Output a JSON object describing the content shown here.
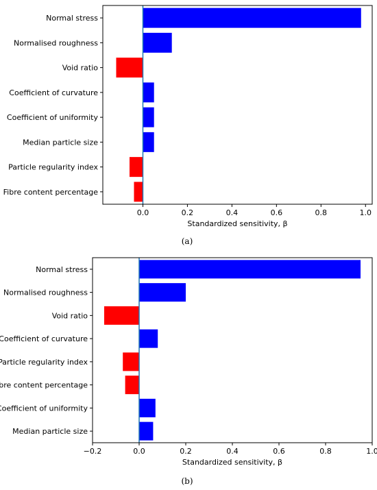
{
  "figure": {
    "caption_a": "(a)",
    "caption_b": "(b)"
  },
  "chart_data": [
    {
      "type": "bar",
      "orientation": "horizontal",
      "title": "",
      "xlabel": "Standardized sensitivity, β",
      "ylabel": "",
      "xlim": [
        -0.18,
        1.03
      ],
      "xticks": [
        0.0,
        0.2,
        0.4,
        0.6,
        0.8,
        1.0
      ],
      "xtick_labels": [
        "0.0",
        "0.2",
        "0.4",
        "0.6",
        "0.8",
        "1.0"
      ],
      "categories": [
        "Normal stress",
        "Normalised roughness",
        "Void ratio",
        "Coefficient of curvature",
        "Coefficient of uniformity",
        "Median particle size",
        "Particle regularity index",
        "Fibre content percentage"
      ],
      "values": [
        0.98,
        0.13,
        -0.12,
        0.05,
        0.05,
        0.05,
        -0.06,
        -0.04
      ],
      "colors": {
        "positive": "#0000ff",
        "negative": "#ff0000",
        "zero_line": "#1f77b4"
      },
      "grid": false,
      "legend": "none"
    },
    {
      "type": "bar",
      "orientation": "horizontal",
      "title": "",
      "xlabel": "Standardized sensitivity, β",
      "ylabel": "",
      "xlim": [
        -0.2,
        1.0
      ],
      "xticks": [
        -0.2,
        0.0,
        0.2,
        0.4,
        0.6,
        0.8,
        1.0
      ],
      "xtick_labels": [
        "−0.2",
        "0.0",
        "0.2",
        "0.4",
        "0.6",
        "0.8",
        "1.0"
      ],
      "categories": [
        "Normal stress",
        "Normalised roughness",
        "Void ratio",
        "Coefficient of curvature",
        "Particle regularity index",
        "Fibre content percentage",
        "Coefficient of uniformity",
        "Median particle size"
      ],
      "values": [
        0.95,
        0.2,
        -0.15,
        0.08,
        -0.07,
        -0.06,
        0.07,
        0.06
      ],
      "colors": {
        "positive": "#0000ff",
        "negative": "#ff0000",
        "zero_line": "#1f77b4"
      },
      "grid": false,
      "legend": "none"
    }
  ]
}
